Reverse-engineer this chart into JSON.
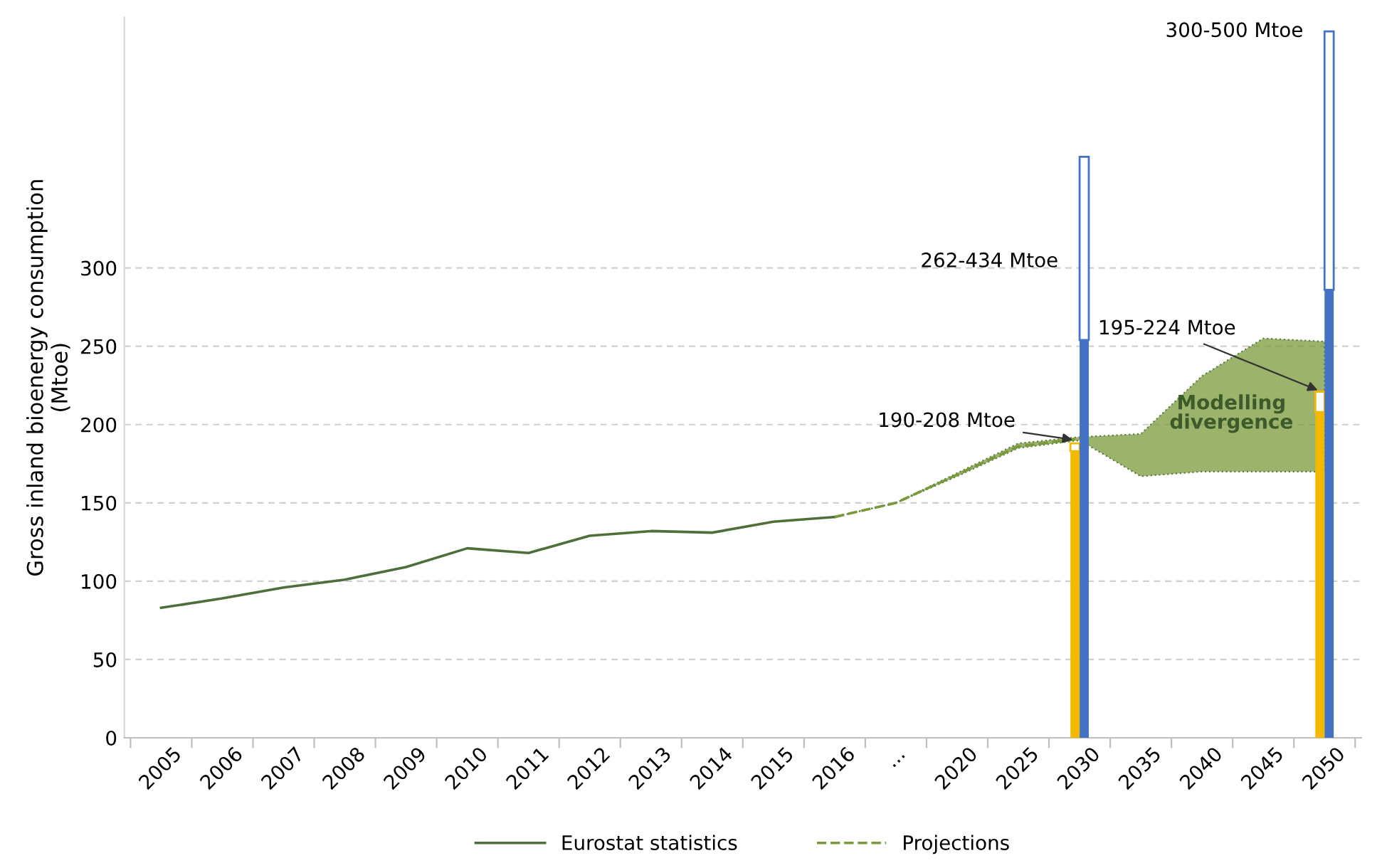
{
  "chart_data": {
    "type": "line",
    "ylabel": "Gross inland bioenergy consumption\n(Mtoe)",
    "categories": [
      "2005",
      "2006",
      "2007",
      "2008",
      "2009",
      "2010",
      "2011",
      "2012",
      "2013",
      "2014",
      "2015",
      "2016",
      "...",
      "2020",
      "2025",
      "2030",
      "2035",
      "2040",
      "2045",
      "2050"
    ],
    "series": [
      {
        "name": "Eurostat statistics",
        "color": "#4f6f3a",
        "line_style": "solid",
        "values": [
          83,
          89,
          96,
          101,
          109,
          121,
          118,
          129,
          132,
          131,
          138,
          141,
          null,
          null,
          null,
          null,
          null,
          null,
          null,
          null
        ]
      },
      {
        "name": "Projections",
        "color": "#7a9a3a",
        "line_style": "dashed",
        "values": [
          null,
          null,
          null,
          null,
          null,
          null,
          null,
          null,
          null,
          null,
          null,
          141,
          150,
          168,
          186,
          191,
          null,
          null,
          null,
          null
        ],
        "lower": [
          null,
          null,
          null,
          null,
          null,
          null,
          null,
          null,
          null,
          null,
          null,
          141,
          150,
          167,
          185,
          190,
          167,
          170,
          170,
          170
        ],
        "upper": [
          null,
          null,
          null,
          null,
          null,
          null,
          null,
          null,
          null,
          null,
          null,
          141,
          150,
          169,
          188,
          192,
          194,
          231,
          255,
          253
        ]
      },
      {
        "type": "bar",
        "color": "#f5b800",
        "values": [
          null,
          null,
          null,
          null,
          null,
          null,
          null,
          null,
          null,
          null,
          null,
          null,
          null,
          null,
          null,
          183,
          null,
          null,
          null,
          208
        ]
      },
      {
        "type": "bar",
        "color": "#f5b800",
        "base": [
          null,
          null,
          null,
          null,
          null,
          null,
          null,
          null,
          null,
          null,
          null,
          null,
          null,
          null,
          null,
          183,
          null,
          null,
          null,
          208
        ],
        "values": [
          null,
          null,
          null,
          null,
          null,
          null,
          null,
          null,
          null,
          null,
          null,
          null,
          null,
          null,
          null,
          5,
          null,
          null,
          null,
          13
        ]
      },
      {
        "type": "bar",
        "color": "#4472c4",
        "values": [
          null,
          null,
          null,
          null,
          null,
          null,
          null,
          null,
          null,
          null,
          null,
          null,
          null,
          null,
          null,
          254,
          null,
          null,
          null,
          286
        ]
      },
      {
        "type": "bar",
        "color": "#4472c4",
        "base": [
          null,
          null,
          null,
          null,
          null,
          null,
          null,
          null,
          null,
          null,
          null,
          null,
          null,
          null,
          null,
          254,
          null,
          null,
          null,
          286
        ],
        "values": [
          null,
          null,
          null,
          null,
          null,
          null,
          null,
          null,
          null,
          null,
          null,
          null,
          null,
          null,
          null,
          117,
          null,
          null,
          null,
          165
        ]
      }
    ],
    "annotations": [
      {
        "text": "190-208 Mtoe",
        "x": "2030",
        "y": 190
      },
      {
        "text": "262-434 Mtoe",
        "x": "2030",
        "y": 300
      },
      {
        "text": "195-224 Mtoe",
        "x": "2050",
        "y": 221
      },
      {
        "text": "300-500 Mtoe",
        "x": "2050",
        "y": 451
      },
      "Modelling\ndivergence"
    ],
    "ylim": [
      0,
      460
    ],
    "yticks": [
      0,
      50,
      100,
      150,
      200,
      250,
      300
    ],
    "grid": "y",
    "legend": "bottom"
  }
}
